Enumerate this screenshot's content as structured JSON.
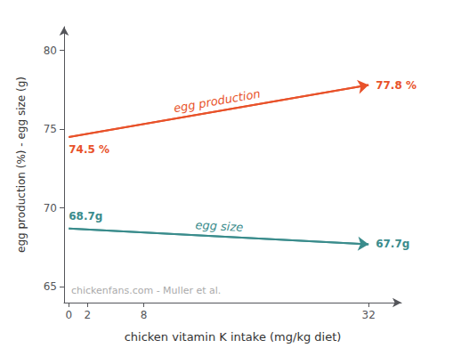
{
  "chart_data": {
    "type": "line",
    "x": [
      0,
      32
    ],
    "series": [
      {
        "name": "egg production",
        "color": "#E8522A",
        "values": [
          74.5,
          77.8
        ],
        "value_labels": [
          "74.5 %",
          "77.8 %"
        ]
      },
      {
        "name": "egg size",
        "color": "#3A8C8C",
        "values": [
          68.7,
          67.7
        ],
        "value_labels": [
          "68.7g",
          "67.7g"
        ]
      }
    ],
    "xlabel": "chicken vitamin K intake (mg/kg diet)",
    "ylabel": "egg production (%) - egg size (g)",
    "xlim": [
      -0.5,
      35.5
    ],
    "xticks": [
      0,
      2,
      8,
      32
    ],
    "ylim": [
      64.0,
      81.5
    ],
    "yticks": [
      65,
      70,
      75,
      80
    ],
    "annotations": [
      "chickenfans.com - Muller et al."
    ],
    "grid": false
  }
}
